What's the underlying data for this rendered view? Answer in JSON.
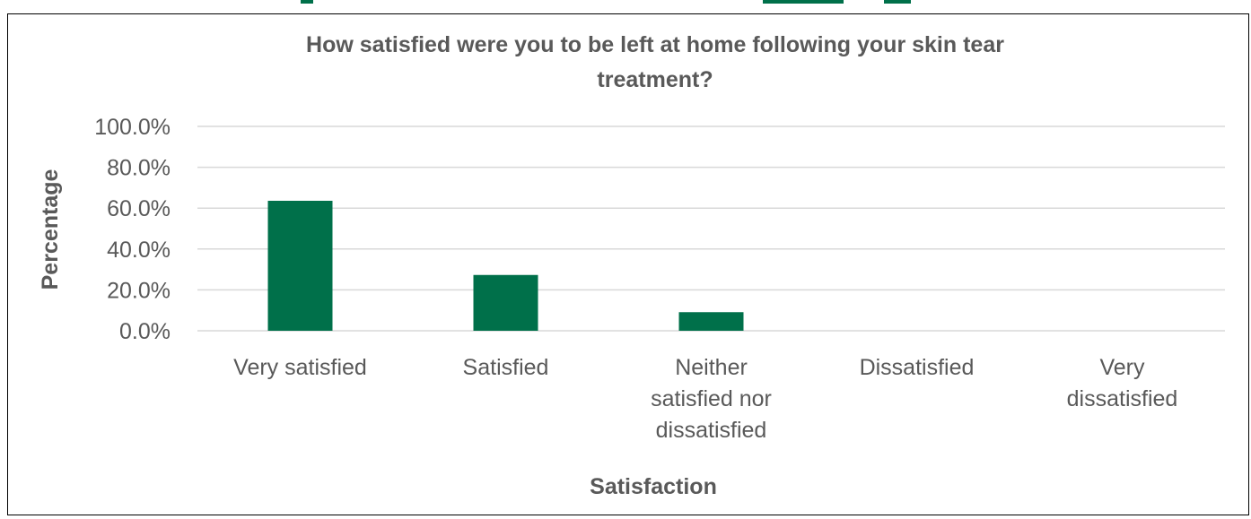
{
  "colors": {
    "bar": "#00704a",
    "grid": "#d9d9d9",
    "text": "#595959",
    "frame": "#000000"
  },
  "chart_data": {
    "type": "bar",
    "title": [
      "How satisfied were you to be left at home following your skin tear",
      "treatment?"
    ],
    "xlabel": "Satisfaction",
    "ylabel": "Percentage",
    "ylim": [
      0,
      100
    ],
    "yticks": [
      "0.0%",
      "20.0%",
      "40.0%",
      "60.0%",
      "80.0%",
      "100.0%"
    ],
    "ytick_values": [
      0,
      20,
      40,
      60,
      80,
      100
    ],
    "categories": [
      "Very satisfied",
      "Satisfied",
      "Neither satisfied nor dissatisfied",
      "Dissatisfied",
      "Very dissatisfied"
    ],
    "category_lines": [
      [
        "Very satisfied"
      ],
      [
        "Satisfied"
      ],
      [
        "Neither",
        "satisfied nor",
        "dissatisfied"
      ],
      [
        "Dissatisfied"
      ],
      [
        "Very",
        "dissatisfied"
      ]
    ],
    "values": [
      63.6,
      27.3,
      9.1,
      0,
      0
    ],
    "grid": true,
    "legend": "none"
  }
}
